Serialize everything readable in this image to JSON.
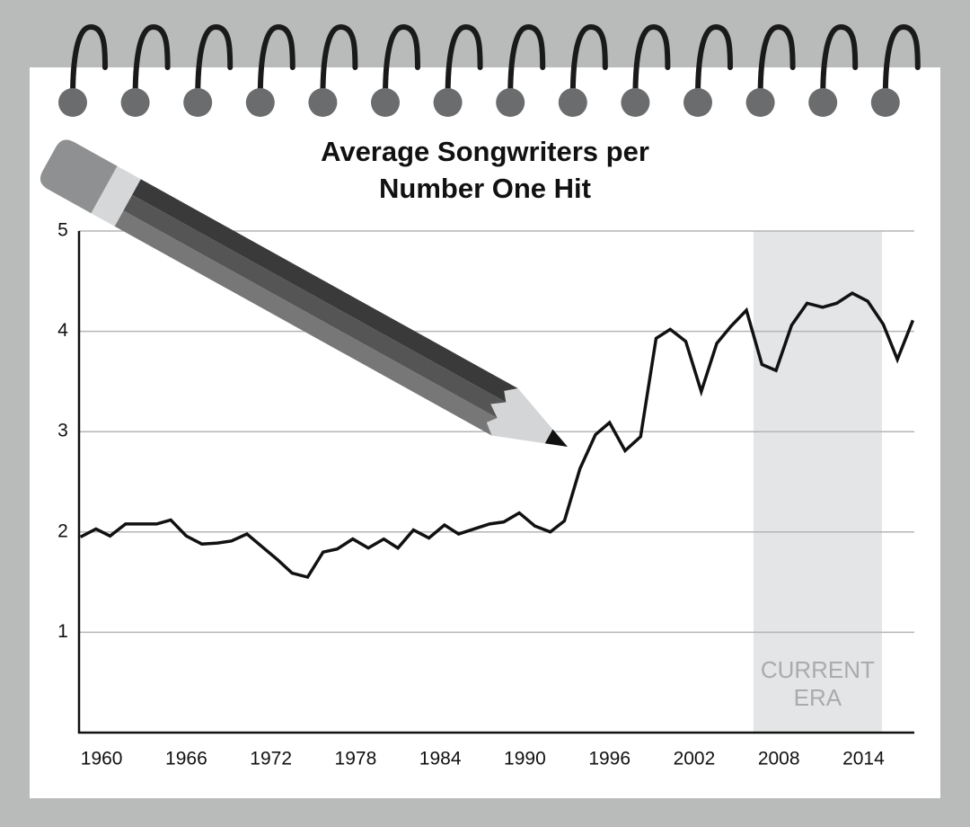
{
  "chart_data": {
    "type": "line",
    "title": [
      "Average Songwriters per",
      "Number One Hit"
    ],
    "x": [
      1958.5,
      1959.6,
      1960.6,
      1961.7,
      1962.8,
      1963.9,
      1964.9,
      1966.0,
      1967.1,
      1968.2,
      1969.2,
      1970.3,
      1971.4,
      1972.5,
      1973.5,
      1974.6,
      1975.7,
      1976.7,
      1977.8,
      1978.9,
      1980.0,
      1981.0,
      1982.1,
      1983.2,
      1984.3,
      1985.3,
      1986.4,
      1987.5,
      1988.5,
      1989.6,
      1990.7,
      1991.8,
      1992.8,
      1993.9,
      1995.0,
      1996.0,
      1997.1,
      1998.2,
      1999.3,
      2000.3,
      2001.4,
      2002.5,
      2003.6,
      2004.6,
      2005.7,
      2006.8,
      2007.8,
      2008.9,
      2010.0,
      2011.1,
      2012.1,
      2013.2,
      2014.3,
      2015.4,
      2016.4,
      2017.5
    ],
    "series": [
      {
        "color": "#111111",
        "values": [
          1.95,
          2.03,
          1.96,
          2.08,
          2.08,
          2.08,
          2.12,
          1.96,
          1.88,
          1.89,
          1.91,
          1.98,
          1.85,
          1.72,
          1.59,
          1.55,
          1.8,
          1.83,
          1.93,
          1.84,
          1.93,
          1.84,
          2.02,
          1.94,
          2.07,
          1.98,
          2.03,
          2.08,
          2.1,
          2.19,
          2.06,
          2.0,
          2.11,
          2.63,
          2.97,
          3.09,
          2.81,
          2.95,
          3.93,
          4.02,
          3.9,
          3.4,
          3.88,
          4.05,
          4.21,
          3.67,
          3.61,
          4.06,
          4.28,
          4.24,
          4.28,
          4.38,
          4.3,
          4.07,
          3.72,
          4.11
        ]
      }
    ],
    "xlim": [
      1958.4,
      2017.6
    ],
    "xticks": [
      1960,
      1966,
      1972,
      1978,
      1984,
      1990,
      1996,
      2002,
      2008,
      2014
    ],
    "ylim": [
      0,
      5
    ],
    "yticks": [
      1,
      2,
      3,
      4,
      5
    ],
    "grid": true,
    "annotations": [
      {
        "range": [
          2006.2,
          2015.3
        ],
        "color": "#e4e5e6",
        "label": [
          "CURRENT",
          "ERA"
        ]
      }
    ]
  }
}
